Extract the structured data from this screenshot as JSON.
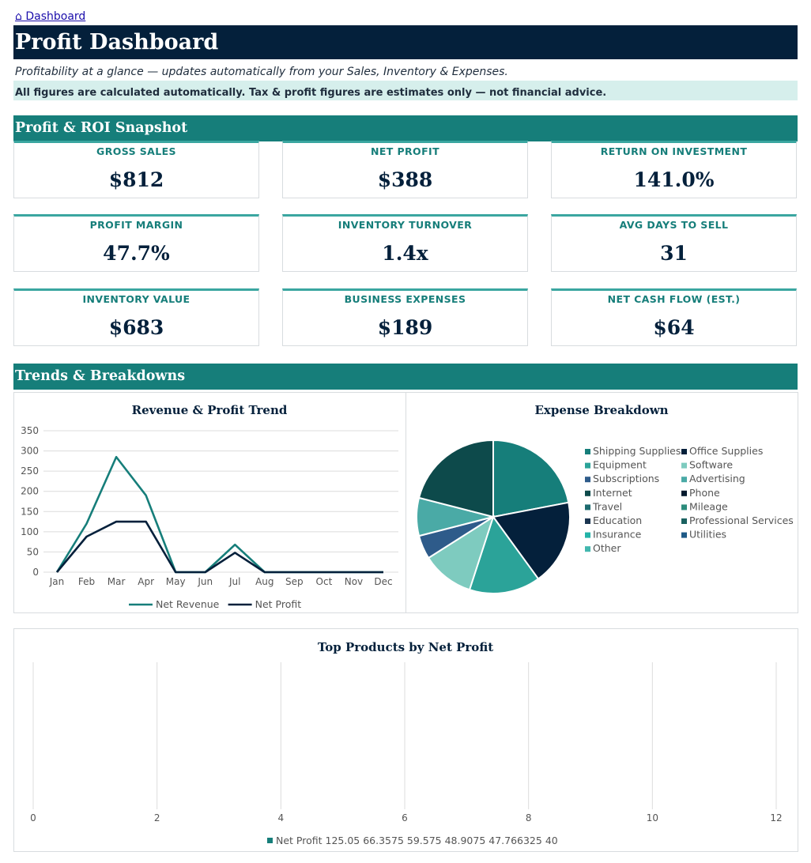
{
  "nav": {
    "breadcrumb": "⌂ Dashboard"
  },
  "header": {
    "title": "Profit Dashboard",
    "subtitle": "Profitability at a glance — updates automatically from your Sales, Inventory & Expenses.",
    "notice": "All figures are calculated automatically. Tax & profit figures are estimates only — not financial advice."
  },
  "sections": {
    "snapshot": "Profit & ROI Snapshot",
    "trends": "Trends & Breakdowns"
  },
  "kpis": [
    {
      "label": "GROSS SALES",
      "value": "$812"
    },
    {
      "label": "NET PROFIT",
      "value": "$388"
    },
    {
      "label": "RETURN ON INVESTMENT",
      "value": "141.0%"
    },
    {
      "label": "PROFIT MARGIN",
      "value": "47.7%"
    },
    {
      "label": "INVENTORY TURNOVER",
      "value": "1.4x"
    },
    {
      "label": "AVG DAYS TO SELL",
      "value": "31"
    },
    {
      "label": "INVENTORY VALUE",
      "value": "$683"
    },
    {
      "label": "BUSINESS EXPENSES",
      "value": "$189"
    },
    {
      "label": "NET CASH FLOW (EST.)",
      "value": "$64"
    }
  ],
  "colors": {
    "navy": "#04203b",
    "teal": "#167e7a",
    "accent": "#3aa6a0",
    "notice_bg": "#d6efec"
  },
  "chart_data": [
    {
      "type": "line",
      "title": "Revenue & Profit Trend",
      "categories": [
        "Jan",
        "Feb",
        "Mar",
        "Apr",
        "May",
        "Jun",
        "Jul",
        "Aug",
        "Sep",
        "Oct",
        "Nov",
        "Dec"
      ],
      "yticks": [
        "0",
        "50",
        "100",
        "150",
        "200",
        "250",
        "300",
        "350"
      ],
      "ylim": [
        0,
        350
      ],
      "grid": true,
      "legend": "bottom",
      "series": [
        {
          "name": "Net Revenue",
          "color": "#167e7a",
          "values": [
            0,
            120,
            285,
            190,
            0,
            0,
            68,
            0,
            0,
            0,
            0,
            0
          ]
        },
        {
          "name": "Net Profit",
          "color": "#04203b",
          "values": [
            0,
            88,
            125,
            125,
            0,
            0,
            48,
            0,
            0,
            0,
            0,
            0
          ]
        }
      ]
    },
    {
      "type": "pie",
      "title": "Expense Breakdown",
      "legend": "right",
      "categories": [
        "Shipping Supplies",
        "Office Supplies",
        "Equipment",
        "Software",
        "Subscriptions",
        "Advertising",
        "Internet",
        "Phone",
        "Travel",
        "Mileage",
        "Education",
        "Professional Services",
        "Insurance",
        "Utilities",
        "Other"
      ],
      "legend_colors": [
        "#167e7a",
        "#04203b",
        "#2ba399",
        "#7ecbbf",
        "#2e5b8a",
        "#4aaaa6",
        "#0d4a4b",
        "#041a2e",
        "#1e6b6f",
        "#2c8c7c",
        "#1b3550",
        "#1a6160",
        "#23b3a8",
        "#1e5a87",
        "#42b7ae"
      ],
      "slices": [
        {
          "value": 22,
          "color": "#167e7a"
        },
        {
          "value": 18,
          "color": "#04203b"
        },
        {
          "value": 15,
          "color": "#2ba399"
        },
        {
          "value": 11,
          "color": "#7ecbbf"
        },
        {
          "value": 5,
          "color": "#2e5b8a"
        },
        {
          "value": 8,
          "color": "#4aaaa6"
        },
        {
          "value": 21,
          "color": "#0d4a4b"
        }
      ]
    },
    {
      "type": "bar",
      "title": "Top Products by Net Profit",
      "xticks": [
        "0",
        "2",
        "4",
        "6",
        "8",
        "10",
        "12"
      ],
      "xlim": [
        0,
        12
      ],
      "grid": true,
      "legend": "bottom",
      "series": [
        {
          "name": "Net Profit 125.05 66.3575 59.575 48.9075 47.766325 40",
          "color": "#167e7a",
          "values": []
        }
      ]
    }
  ]
}
